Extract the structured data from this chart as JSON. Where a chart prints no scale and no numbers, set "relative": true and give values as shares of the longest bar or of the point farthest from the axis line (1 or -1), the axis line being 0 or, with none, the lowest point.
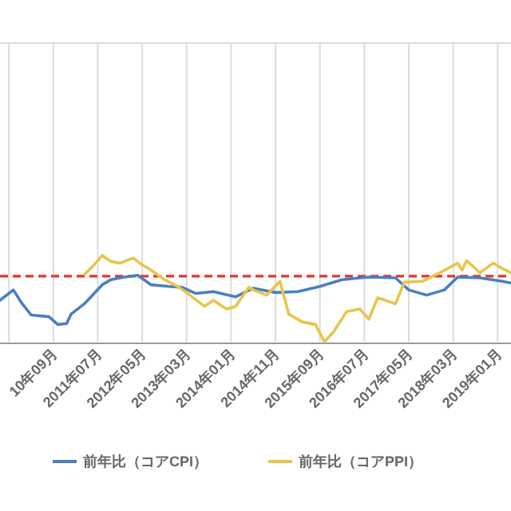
{
  "chart_data": {
    "type": "line",
    "relative": true,
    "grid": "x",
    "legend": "bottom",
    "xlim": [
      "2009-09",
      "2019-04"
    ],
    "xticks": [
      {
        "value": "2009-11",
        "label": null
      },
      {
        "value": "2010-09",
        "label": "10年09月"
      },
      {
        "value": "2011-07",
        "label": "2011年07月"
      },
      {
        "value": "2012-05",
        "label": "2012年05月"
      },
      {
        "value": "2013-03",
        "label": "2013年03月"
      },
      {
        "value": "2014-01",
        "label": "2014年01月"
      },
      {
        "value": "2014-11",
        "label": "2014年11月"
      },
      {
        "value": "2015-09",
        "label": "2015年09月"
      },
      {
        "value": "2016-07",
        "label": "2016年07月"
      },
      {
        "value": "2017-05",
        "label": "2017年05月"
      },
      {
        "value": "2018-03",
        "label": "2018年03月"
      },
      {
        "value": "2019-01",
        "label": "2019年01月"
      }
    ],
    "series": [
      {
        "name": "前年比（コアCPI）",
        "color": "#4a7fc1",
        "x": [
          "2009-09",
          "2009-12",
          "2010-02",
          "2010-04",
          "2010-08",
          "2010-10",
          "2010-12",
          "2011-01",
          "2011-04",
          "2011-08",
          "2011-10",
          "2012-01",
          "2012-04",
          "2012-07",
          "2012-11",
          "2013-02",
          "2013-05",
          "2013-09",
          "2014-02",
          "2014-06",
          "2014-11",
          "2015-04",
          "2015-09",
          "2016-02",
          "2016-08",
          "2017-02",
          "2017-05",
          "2017-09",
          "2018-01",
          "2018-04",
          "2018-09",
          "2019-02",
          "2019-04"
        ],
        "values": [
          0.48,
          0.6,
          0.44,
          0.31,
          0.29,
          0.2,
          0.21,
          0.32,
          0.44,
          0.66,
          0.72,
          0.75,
          0.77,
          0.66,
          0.64,
          0.63,
          0.56,
          0.58,
          0.52,
          0.62,
          0.57,
          0.58,
          0.64,
          0.72,
          0.75,
          0.74,
          0.6,
          0.54,
          0.6,
          0.75,
          0.74,
          0.7,
          0.68
        ]
      },
      {
        "name": "前年比（コアPPI）",
        "color": "#e8c54a",
        "x": [
          "2011-04",
          "2011-06",
          "2011-08",
          "2011-10",
          "2011-12",
          "2012-03",
          "2012-05",
          "2012-07",
          "2012-10",
          "2013-01",
          "2013-03",
          "2013-07",
          "2013-09",
          "2013-12",
          "2014-02",
          "2014-05",
          "2014-06",
          "2014-09",
          "2014-12",
          "2015-02",
          "2015-05",
          "2015-08",
          "2015-10",
          "2015-12",
          "2016-03",
          "2016-06",
          "2016-08",
          "2016-10",
          "2017-02",
          "2017-04",
          "2017-08",
          "2017-12",
          "2018-04",
          "2018-05",
          "2018-06",
          "2018-09",
          "2018-12",
          "2019-02",
          "2019-04"
        ],
        "values": [
          0.78,
          0.88,
          1,
          0.93,
          0.91,
          0.97,
          0.89,
          0.83,
          0.72,
          0.64,
          0.57,
          0.41,
          0.48,
          0.38,
          0.41,
          0.63,
          0.6,
          0.54,
          0.7,
          0.32,
          0.23,
          0.2,
          0,
          0.11,
          0.35,
          0.38,
          0.26,
          0.51,
          0.44,
          0.69,
          0.7,
          0.8,
          0.91,
          0.83,
          0.94,
          0.8,
          0.91,
          0.85,
          0.8
        ]
      }
    ],
    "ref_lines": [
      {
        "axis": "y",
        "value": 0.76,
        "color": "#e8322a",
        "line_style": "dashed"
      }
    ]
  }
}
